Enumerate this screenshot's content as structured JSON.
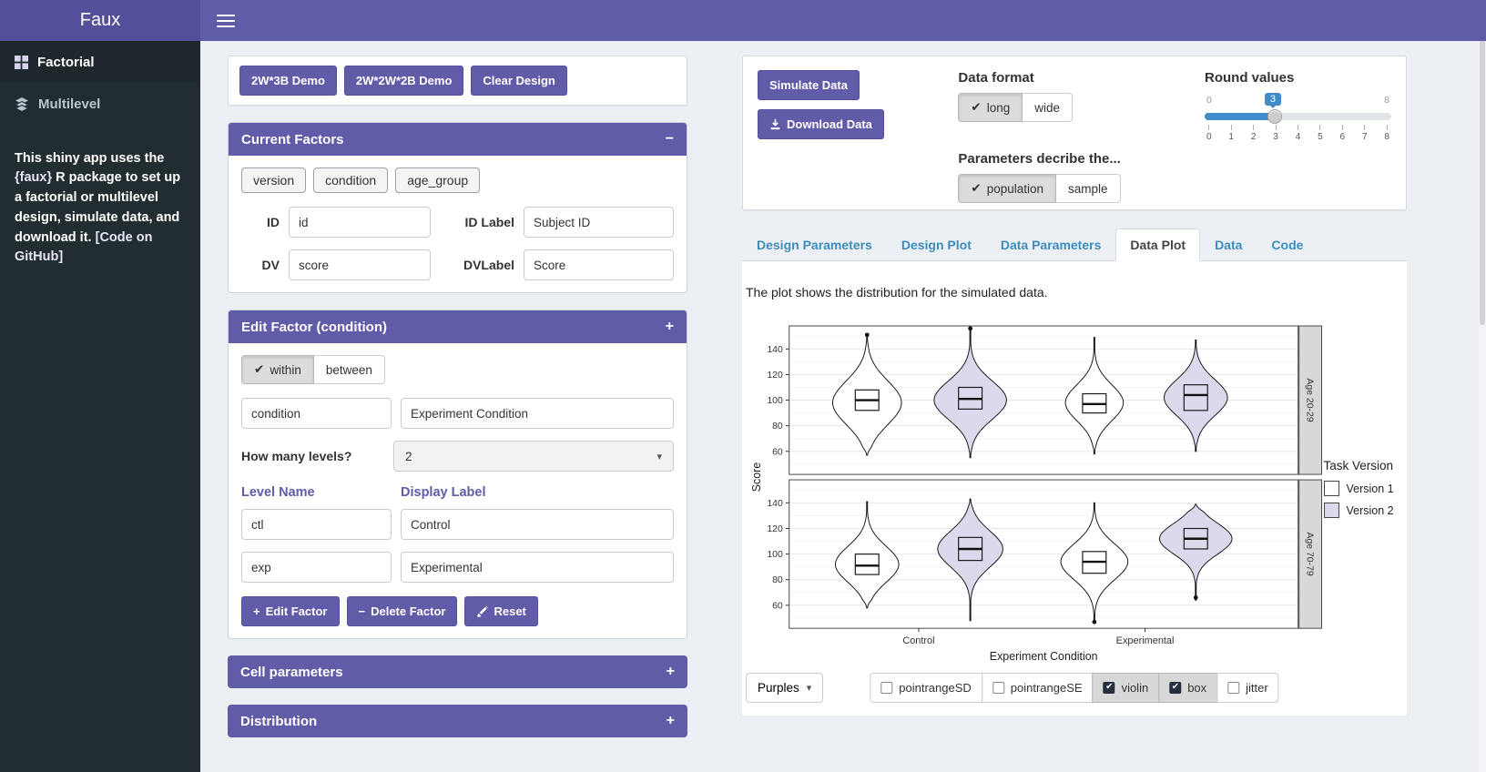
{
  "icons": {
    "check": "✔",
    "plus": "+",
    "minus": "−",
    "caret_down": "▾"
  },
  "header": {
    "brand": "Faux"
  },
  "sidebar": {
    "items": [
      {
        "label": "Factorial"
      },
      {
        "label": "Multilevel"
      }
    ],
    "about_pre": "This shiny app uses the ",
    "about_pkg": "{faux}",
    "about_mid": " R package to set up a factorial or multilevel design, simulate data, and download it. ",
    "about_link": "[Code on GitHub]"
  },
  "demo": {
    "buttons": [
      "2W*3B Demo",
      "2W*2W*2B Demo",
      "Clear Design"
    ]
  },
  "current_factors": {
    "title": "Current Factors",
    "collapse_icon": "−",
    "chips": [
      "version",
      "condition",
      "age_group"
    ],
    "id_label": "ID",
    "id_value": "id",
    "idlabel_label": "ID Label",
    "idlabel_value": "Subject ID",
    "dv_label": "DV",
    "dv_value": "score",
    "dvlabel_label": "DVLabel",
    "dvlabel_value": "Score"
  },
  "edit_factor": {
    "title": "Edit Factor (condition)",
    "collapse_icon": "+",
    "within": "within",
    "between": "between",
    "factor_name": "condition",
    "factor_label": "Experiment Condition",
    "levels_question": "How many levels?",
    "levels_count": "2",
    "level_name_header": "Level Name",
    "display_label_header": "Display Label",
    "levels": [
      {
        "name": "ctl",
        "label": "Control"
      },
      {
        "name": "exp",
        "label": "Experimental"
      }
    ],
    "edit_btn": "Edit Factor",
    "delete_btn": "Delete Factor",
    "reset_btn": "Reset"
  },
  "cell_parameters": {
    "title": "Cell parameters",
    "collapse_icon": "+"
  },
  "distribution": {
    "title": "Distribution",
    "collapse_icon": "+"
  },
  "sim_panel": {
    "simulate_btn": "Simulate Data",
    "download_btn": "Download Data",
    "data_format_label": "Data format",
    "format_long": "long",
    "format_wide": "wide",
    "params_label": "Parameters decribe the...",
    "pop": "population",
    "sample": "sample",
    "round_label": "Round values",
    "slider": {
      "min": "0",
      "max": "8",
      "value": "3",
      "ticks": [
        "0",
        "1",
        "2",
        "3",
        "4",
        "5",
        "6",
        "7",
        "8"
      ]
    }
  },
  "tabs": [
    {
      "label": "Design Parameters"
    },
    {
      "label": "Design Plot"
    },
    {
      "label": "Data Parameters"
    },
    {
      "label": "Data Plot"
    },
    {
      "label": "Data"
    },
    {
      "label": "Code"
    }
  ],
  "plot_note": "The plot shows the distribution for the simulated data.",
  "chart_data": {
    "type": "violin",
    "xlabel": "Experiment Condition",
    "ylabel": "Score",
    "x_categories": [
      "Control",
      "Experimental"
    ],
    "y_ticks": [
      60,
      80,
      100,
      120,
      140
    ],
    "y_range": [
      42,
      158
    ],
    "legend": {
      "title": "Task Version",
      "entries": [
        {
          "label": "Version 1",
          "color": "#ffffff"
        },
        {
          "label": "Version 2",
          "color": "#dbd9ec"
        }
      ]
    },
    "facets": [
      {
        "label": "Age 20-29",
        "violins": [
          {
            "x": "Control",
            "series": "Version 1",
            "min": 57,
            "max": 151,
            "mode": 98,
            "spread": 17,
            "halfwidth": 38,
            "q1": 92,
            "median": 100,
            "q3": 108,
            "outliers": [
              151
            ]
          },
          {
            "x": "Control",
            "series": "Version 2",
            "min": 55,
            "max": 156,
            "mode": 100,
            "spread": 15,
            "halfwidth": 40,
            "q1": 93,
            "median": 101,
            "q3": 110,
            "outliers": [
              156
            ]
          },
          {
            "x": "Experimental",
            "series": "Version 1",
            "min": 58,
            "max": 149,
            "mode": 98,
            "spread": 14,
            "halfwidth": 32,
            "q1": 90,
            "median": 97,
            "q3": 105,
            "outliers": []
          },
          {
            "x": "Experimental",
            "series": "Version 2",
            "min": 60,
            "max": 147,
            "mode": 102,
            "spread": 14,
            "halfwidth": 35,
            "q1": 92,
            "median": 104,
            "q3": 112,
            "outliers": []
          }
        ]
      },
      {
        "label": "Age 70-79",
        "violins": [
          {
            "x": "Control",
            "series": "Version 1",
            "min": 58,
            "max": 141,
            "mode": 92,
            "spread": 14,
            "halfwidth": 35,
            "q1": 84,
            "median": 91,
            "q3": 100,
            "outliers": []
          },
          {
            "x": "Control",
            "series": "Version 2",
            "min": 48,
            "max": 143,
            "mode": 104,
            "spread": 14,
            "halfwidth": 36,
            "q1": 95,
            "median": 104,
            "q3": 113,
            "outliers": []
          },
          {
            "x": "Experimental",
            "series": "Version 1",
            "min": 47,
            "max": 140,
            "mode": 94,
            "spread": 14,
            "halfwidth": 37,
            "q1": 85,
            "median": 94,
            "q3": 102,
            "outliers": [
              47
            ]
          },
          {
            "x": "Experimental",
            "series": "Version 2",
            "min": 64,
            "max": 139,
            "mode": 112,
            "spread": 12,
            "halfwidth": 40,
            "q1": 104,
            "median": 112,
            "q3": 120,
            "outliers": [
              66
            ]
          }
        ]
      }
    ]
  },
  "plot_controls": {
    "palette": "Purples",
    "checkboxes": [
      {
        "label": "pointrangeSD",
        "checked": false
      },
      {
        "label": "pointrangeSE",
        "checked": false
      },
      {
        "label": "violin",
        "checked": true
      },
      {
        "label": "box",
        "checked": true
      },
      {
        "label": "jitter",
        "checked": false
      }
    ]
  },
  "colors": {
    "accent": "#605ca8",
    "tab_link": "#3c8dbc",
    "slider_fill": "#428bca"
  }
}
